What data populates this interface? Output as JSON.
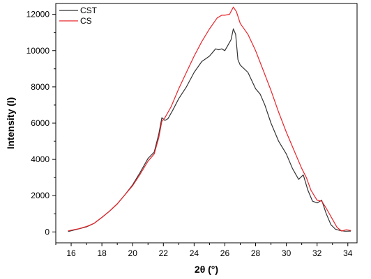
{
  "chart_data": {
    "type": "line",
    "xlabel": "2θ (°)",
    "ylabel": "Intensity (I)",
    "xlim": [
      15,
      34.6
    ],
    "ylim": [
      -600,
      12600
    ],
    "x_ticks": [
      16,
      18,
      20,
      22,
      24,
      26,
      28,
      30,
      32,
      34
    ],
    "y_ticks": [
      0,
      2000,
      4000,
      6000,
      8000,
      10000,
      12000
    ],
    "legend_position": "top-left",
    "grid": false,
    "series": [
      {
        "name": "CST",
        "color": "#333333",
        "points": [
          [
            15.8,
            20
          ],
          [
            16.5,
            170
          ],
          [
            17.0,
            280
          ],
          [
            17.5,
            480
          ],
          [
            18.0,
            800
          ],
          [
            18.5,
            1150
          ],
          [
            19.0,
            1550
          ],
          [
            19.5,
            2050
          ],
          [
            20.0,
            2600
          ],
          [
            20.5,
            3300
          ],
          [
            21.0,
            4050
          ],
          [
            21.4,
            4400
          ],
          [
            21.7,
            5400
          ],
          [
            21.9,
            6300
          ],
          [
            22.1,
            6150
          ],
          [
            22.3,
            6250
          ],
          [
            22.6,
            6700
          ],
          [
            23.0,
            7350
          ],
          [
            23.5,
            8000
          ],
          [
            24.0,
            8800
          ],
          [
            24.5,
            9400
          ],
          [
            25.0,
            9700
          ],
          [
            25.4,
            10100
          ],
          [
            25.6,
            10050
          ],
          [
            25.8,
            10100
          ],
          [
            26.0,
            10000
          ],
          [
            26.2,
            10300
          ],
          [
            26.4,
            10600
          ],
          [
            26.55,
            11200
          ],
          [
            26.7,
            10900
          ],
          [
            26.85,
            9500
          ],
          [
            27.0,
            9200
          ],
          [
            27.5,
            8800
          ],
          [
            28.0,
            7900
          ],
          [
            28.3,
            7600
          ],
          [
            28.6,
            7000
          ],
          [
            29.0,
            6000
          ],
          [
            29.5,
            5000
          ],
          [
            30.0,
            4300
          ],
          [
            30.4,
            3500
          ],
          [
            30.8,
            2900
          ],
          [
            31.1,
            3150
          ],
          [
            31.4,
            2300
          ],
          [
            31.7,
            1700
          ],
          [
            32.0,
            1600
          ],
          [
            32.3,
            1750
          ],
          [
            32.6,
            1000
          ],
          [
            32.9,
            400
          ],
          [
            33.2,
            150
          ],
          [
            33.5,
            80
          ],
          [
            33.8,
            40
          ],
          [
            34.2,
            50
          ]
        ]
      },
      {
        "name": "CS",
        "color": "#e8242a",
        "points": [
          [
            15.8,
            60
          ],
          [
            16.5,
            180
          ],
          [
            17.0,
            300
          ],
          [
            17.5,
            480
          ],
          [
            18.0,
            800
          ],
          [
            18.5,
            1150
          ],
          [
            19.0,
            1550
          ],
          [
            19.5,
            2050
          ],
          [
            20.0,
            2550
          ],
          [
            20.5,
            3200
          ],
          [
            21.0,
            3900
          ],
          [
            21.4,
            4300
          ],
          [
            21.7,
            5200
          ],
          [
            21.9,
            6100
          ],
          [
            22.1,
            6300
          ],
          [
            22.5,
            6900
          ],
          [
            23.0,
            7900
          ],
          [
            23.5,
            8800
          ],
          [
            24.0,
            9700
          ],
          [
            24.5,
            10500
          ],
          [
            25.0,
            11200
          ],
          [
            25.5,
            11800
          ],
          [
            25.8,
            11950
          ],
          [
            26.0,
            11950
          ],
          [
            26.3,
            12000
          ],
          [
            26.55,
            12400
          ],
          [
            26.75,
            12150
          ],
          [
            27.0,
            11500
          ],
          [
            27.5,
            10900
          ],
          [
            28.0,
            10000
          ],
          [
            28.5,
            8900
          ],
          [
            29.0,
            7800
          ],
          [
            29.5,
            6600
          ],
          [
            30.0,
            5500
          ],
          [
            30.5,
            4500
          ],
          [
            31.0,
            3500
          ],
          [
            31.3,
            3000
          ],
          [
            31.6,
            2300
          ],
          [
            32.0,
            1750
          ],
          [
            32.3,
            1700
          ],
          [
            32.6,
            1300
          ],
          [
            33.0,
            700
          ],
          [
            33.3,
            250
          ],
          [
            33.6,
            50
          ],
          [
            33.9,
            120
          ],
          [
            34.2,
            80
          ]
        ]
      }
    ]
  }
}
